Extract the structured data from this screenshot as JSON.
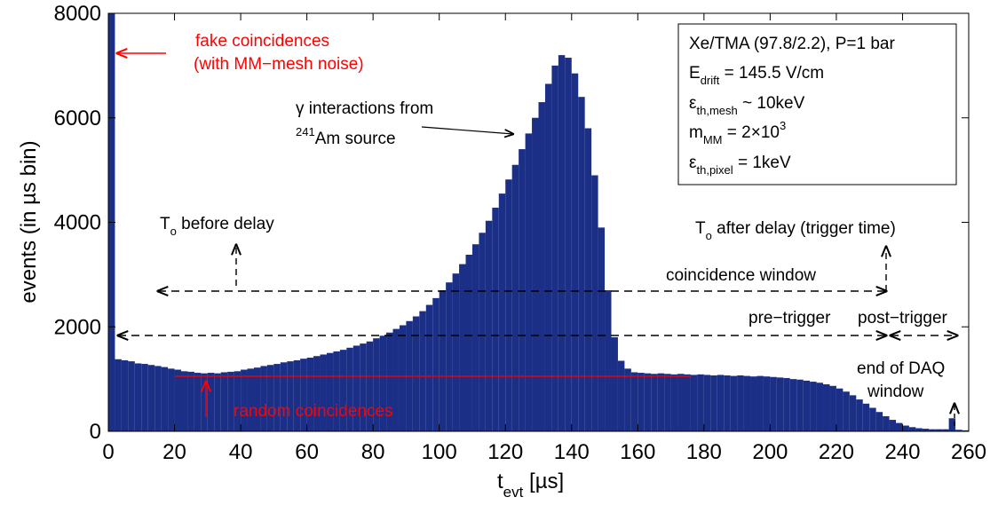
{
  "chart_data": {
    "type": "histogram",
    "xlabel": [
      "t",
      "evt",
      " [µs]"
    ],
    "ylabel": "events (in µs bin)",
    "color": "#1b2f86",
    "bins": [
      0,
      2,
      4,
      6,
      8,
      10,
      12,
      14,
      16,
      18,
      20,
      22,
      24,
      26,
      28,
      30,
      32,
      34,
      36,
      38,
      40,
      42,
      44,
      46,
      48,
      50,
      52,
      54,
      56,
      58,
      60,
      62,
      64,
      66,
      68,
      70,
      72,
      74,
      76,
      78,
      80,
      82,
      84,
      86,
      88,
      90,
      92,
      94,
      96,
      98,
      100,
      102,
      104,
      106,
      108,
      110,
      112,
      114,
      116,
      118,
      120,
      122,
      124,
      126,
      128,
      130,
      132,
      134,
      136,
      138,
      140,
      142,
      144,
      146,
      148,
      150,
      152,
      154,
      156,
      158,
      160,
      162,
      164,
      166,
      168,
      170,
      172,
      174,
      176,
      178,
      180,
      182,
      184,
      186,
      188,
      190,
      192,
      194,
      196,
      198,
      200,
      202,
      204,
      206,
      208,
      210,
      212,
      214,
      216,
      218,
      220,
      222,
      224,
      226,
      228,
      230,
      232,
      234,
      236,
      238,
      240,
      242,
      244,
      246,
      248,
      250,
      252,
      254,
      256,
      258,
      260
    ],
    "values": [
      8000,
      1380,
      1360,
      1340,
      1300,
      1290,
      1270,
      1250,
      1230,
      1200,
      1180,
      1150,
      1140,
      1120,
      1110,
      1120,
      1110,
      1130,
      1140,
      1150,
      1180,
      1200,
      1220,
      1250,
      1270,
      1290,
      1320,
      1340,
      1360,
      1390,
      1410,
      1440,
      1470,
      1500,
      1530,
      1560,
      1600,
      1640,
      1680,
      1720,
      1780,
      1830,
      1890,
      1960,
      2030,
      2110,
      2200,
      2300,
      2420,
      2550,
      2700,
      2850,
      3020,
      3200,
      3380,
      3580,
      3800,
      4030,
      4280,
      4550,
      4820,
      5100,
      5400,
      5700,
      6000,
      6300,
      6650,
      7000,
      7200,
      7150,
      6850,
      6400,
      5800,
      4900,
      3900,
      2700,
      1800,
      1350,
      1200,
      1130,
      1120,
      1110,
      1100,
      1110,
      1100,
      1090,
      1100,
      1090,
      1080,
      1090,
      1080,
      1070,
      1080,
      1070,
      1060,
      1070,
      1060,
      1050,
      1060,
      1050,
      1040,
      1030,
      1020,
      1000,
      990,
      970,
      950,
      930,
      900,
      870,
      820,
      760,
      690,
      610,
      530,
      450,
      370,
      290,
      220,
      160,
      110,
      80,
      60,
      50,
      40,
      40,
      40,
      250,
      30,
      20
    ],
    "xlim": [
      0,
      260
    ],
    "xticks": [
      0,
      20,
      40,
      60,
      80,
      100,
      120,
      140,
      160,
      180,
      200,
      220,
      240,
      260
    ],
    "ylim": [
      0,
      8000
    ],
    "yticks": [
      0,
      2000,
      4000,
      6000,
      8000
    ],
    "annotations": {
      "fake": [
        "fake coincidences",
        "(with MM−mesh noise)"
      ],
      "gamma": [
        "γ interactions from",
        "241",
        "Am source"
      ],
      "t0_before": [
        "T",
        "o",
        " before delay"
      ],
      "t0_after": [
        "T",
        "o",
        " after delay (trigger time)"
      ],
      "coincidence_window": "coincidence window",
      "pre_trigger": "pre−trigger",
      "post_trigger": "post−trigger",
      "end_daq": [
        "end of DAQ",
        "window"
      ],
      "random": "random coincidences"
    },
    "info_box": [
      [
        "Xe/TMA (97.8/2.2), P=1 bar"
      ],
      [
        "E",
        "drift",
        " = 145.5 V/cm"
      ],
      [
        "ε",
        "th,mesh",
        " ~ 10keV"
      ],
      [
        "m",
        "MM",
        " = 2×10",
        "3"
      ],
      [
        "ε",
        "th,pixel",
        " = 1keV"
      ]
    ]
  }
}
